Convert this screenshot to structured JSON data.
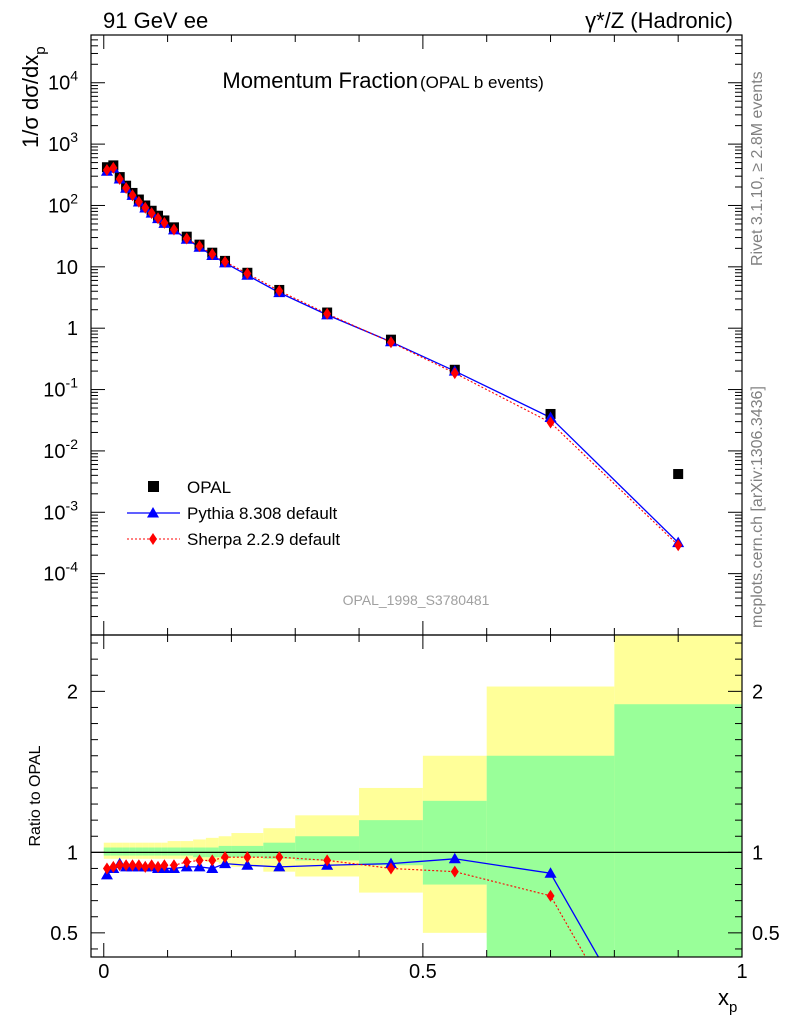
{
  "header": {
    "left": "91 GeV ee",
    "right": "γ*/Z (Hadronic)"
  },
  "side": {
    "rivet": "Rivet 3.1.10, ≥ 2.8M events",
    "mcplots": "mcplots.cern.ch [arXiv:1306.3436]"
  },
  "chart_data": [
    {
      "type": "scatter",
      "title_main": "Momentum Fraction",
      "title_sub": "(OPAL b events)",
      "watermark": "OPAL_1998_S3780481",
      "ylabel": "1/σ dσ/dx",
      "ylabel_sub": "p",
      "yscale": "log",
      "ylim": [
        1e-05,
        60000.0
      ],
      "xlim": [
        -0.02,
        1.0
      ],
      "ytick_labels": [
        "10^-4",
        "10^-3",
        "10^-2",
        "10^-1",
        "1",
        "10",
        "10^2",
        "10^3",
        "10^4"
      ],
      "legend_position": "lower-left",
      "series": [
        {
          "name": "OPAL",
          "style": "black-square-markers",
          "color": "#000000",
          "x": [
            0.005,
            0.015,
            0.025,
            0.035,
            0.045,
            0.055,
            0.065,
            0.075,
            0.085,
            0.095,
            0.11,
            0.13,
            0.15,
            0.17,
            0.19,
            0.225,
            0.275,
            0.35,
            0.45,
            0.55,
            0.7,
            0.9
          ],
          "y": [
            420,
            450,
            290,
            210,
            160,
            125,
            100,
            82,
            68,
            57,
            44,
            31,
            23,
            17,
            12.5,
            8.0,
            4.2,
            1.8,
            0.65,
            0.21,
            0.04,
            0.0042
          ]
        },
        {
          "name": "Pythia 8.308 default",
          "style": "blue-line-triangles",
          "color": "#0000ff",
          "x": [
            0.005,
            0.015,
            0.025,
            0.035,
            0.045,
            0.055,
            0.065,
            0.075,
            0.085,
            0.095,
            0.11,
            0.13,
            0.15,
            0.17,
            0.19,
            0.225,
            0.275,
            0.35,
            0.45,
            0.55,
            0.7,
            0.9
          ],
          "y": [
            361,
            405,
            270,
            191,
            146,
            114,
            91,
            75,
            61,
            51,
            40,
            28.2,
            20.9,
            15.3,
            11.6,
            7.3,
            3.8,
            1.65,
            0.6,
            0.2,
            0.035,
            0.00032
          ]
        },
        {
          "name": "Sherpa 2.2.9 default",
          "style": "red-dotted-diamonds",
          "color": "#ff0000",
          "x": [
            0.005,
            0.015,
            0.025,
            0.035,
            0.045,
            0.055,
            0.065,
            0.075,
            0.085,
            0.095,
            0.11,
            0.13,
            0.15,
            0.17,
            0.19,
            0.225,
            0.275,
            0.35,
            0.45,
            0.55,
            0.7,
            0.9
          ],
          "y": [
            378,
            410,
            270,
            193,
            147,
            115,
            92,
            75,
            62,
            52,
            40.5,
            29,
            21.8,
            16.1,
            12.1,
            7.8,
            4.05,
            1.72,
            0.59,
            0.185,
            0.029,
            0.00029
          ]
        }
      ]
    },
    {
      "type": "scatter",
      "ylabel": "Ratio to OPAL",
      "xlabel": "x",
      "xlabel_sub": "p",
      "ylim": [
        0.35,
        2.35
      ],
      "xlim": [
        -0.02,
        1.0
      ],
      "xtick_labels": [
        "0",
        "0.5",
        "1"
      ],
      "ytick_labels": [
        "0.5",
        "1",
        "2"
      ],
      "reference_line": 1.0,
      "bands": {
        "bins": [
          [
            0.0,
            0.01
          ],
          [
            0.01,
            0.02
          ],
          [
            0.02,
            0.03
          ],
          [
            0.03,
            0.04
          ],
          [
            0.04,
            0.05
          ],
          [
            0.05,
            0.06
          ],
          [
            0.06,
            0.07
          ],
          [
            0.07,
            0.08
          ],
          [
            0.08,
            0.09
          ],
          [
            0.09,
            0.1
          ],
          [
            0.1,
            0.12
          ],
          [
            0.12,
            0.14
          ],
          [
            0.14,
            0.16
          ],
          [
            0.16,
            0.18
          ],
          [
            0.18,
            0.2
          ],
          [
            0.2,
            0.25
          ],
          [
            0.25,
            0.3
          ],
          [
            0.3,
            0.4
          ],
          [
            0.4,
            0.5
          ],
          [
            0.5,
            0.6
          ],
          [
            0.6,
            0.8
          ],
          [
            0.8,
            1.0
          ]
        ],
        "green_low": [
          0.98,
          0.98,
          0.98,
          0.98,
          0.98,
          0.98,
          0.98,
          0.98,
          0.98,
          0.98,
          0.98,
          0.98,
          0.97,
          0.97,
          0.97,
          0.97,
          0.96,
          0.95,
          0.92,
          0.8,
          0.35,
          0.35
        ],
        "green_high": [
          1.03,
          1.03,
          1.03,
          1.03,
          1.03,
          1.03,
          1.03,
          1.03,
          1.03,
          1.03,
          1.03,
          1.03,
          1.03,
          1.03,
          1.04,
          1.04,
          1.06,
          1.1,
          1.2,
          1.32,
          1.6,
          1.92
        ],
        "yellow_low": [
          0.96,
          0.96,
          0.96,
          0.96,
          0.96,
          0.96,
          0.96,
          0.96,
          0.96,
          0.96,
          0.96,
          0.96,
          0.95,
          0.94,
          0.93,
          0.91,
          0.88,
          0.85,
          0.75,
          0.5,
          0.47,
          0.35
        ],
        "yellow_high": [
          1.06,
          1.06,
          1.06,
          1.06,
          1.06,
          1.06,
          1.06,
          1.06,
          1.06,
          1.06,
          1.07,
          1.07,
          1.08,
          1.09,
          1.1,
          1.12,
          1.15,
          1.23,
          1.4,
          1.6,
          2.03,
          2.35
        ],
        "green_color": "#99ff99",
        "yellow_color": "#ffff99"
      },
      "series": [
        {
          "name": "Pythia 8.308 default",
          "color": "#0000ff",
          "x": [
            0.005,
            0.015,
            0.025,
            0.035,
            0.045,
            0.055,
            0.065,
            0.075,
            0.085,
            0.095,
            0.11,
            0.13,
            0.15,
            0.17,
            0.19,
            0.225,
            0.275,
            0.35,
            0.45,
            0.55,
            0.7,
            0.775
          ],
          "y": [
            0.86,
            0.9,
            0.93,
            0.91,
            0.91,
            0.91,
            0.91,
            0.91,
            0.9,
            0.9,
            0.9,
            0.91,
            0.91,
            0.9,
            0.93,
            0.92,
            0.91,
            0.92,
            0.93,
            0.96,
            0.87,
            0.35
          ]
        },
        {
          "name": "Sherpa 2.2.9 default",
          "color": "#ff0000",
          "x": [
            0.005,
            0.015,
            0.025,
            0.035,
            0.045,
            0.055,
            0.065,
            0.075,
            0.085,
            0.095,
            0.11,
            0.13,
            0.15,
            0.17,
            0.19,
            0.225,
            0.275,
            0.35,
            0.45,
            0.55,
            0.7,
            0.755
          ],
          "y": [
            0.9,
            0.91,
            0.92,
            0.92,
            0.92,
            0.92,
            0.91,
            0.92,
            0.91,
            0.92,
            0.92,
            0.94,
            0.95,
            0.95,
            0.97,
            0.97,
            0.97,
            0.95,
            0.9,
            0.88,
            0.73,
            0.35
          ]
        }
      ]
    }
  ]
}
